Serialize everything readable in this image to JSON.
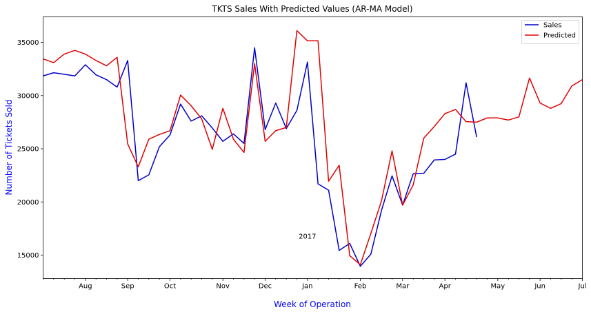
{
  "chart_data": {
    "type": "line",
    "title": "TKTS Sales With Predicted Values (AR-MA Model)",
    "xlabel": "Week of Operation",
    "ylabel": "Number of Tickets Sold",
    "x_axis": {
      "type": "weekly",
      "num_weeks": 51,
      "tick_labels": [
        {
          "week": 4,
          "label": "Aug"
        },
        {
          "week": 8,
          "label": "Sep"
        },
        {
          "week": 12,
          "label": "Oct"
        },
        {
          "week": 17,
          "label": "Nov"
        },
        {
          "week": 21,
          "label": "Dec"
        },
        {
          "week": 25,
          "label": "Jan",
          "sublabel": "2017"
        },
        {
          "week": 30,
          "label": "Feb"
        },
        {
          "week": 34,
          "label": "Mar"
        },
        {
          "week": 38,
          "label": "Apr"
        },
        {
          "week": 43,
          "label": "May"
        },
        {
          "week": 47,
          "label": "Jun"
        },
        {
          "week": 51,
          "label": "Jul"
        }
      ]
    },
    "ylim": [
      12800,
      37400
    ],
    "yticks": [
      15000,
      20000,
      25000,
      30000,
      35000
    ],
    "grid": false,
    "legend": "top-right",
    "series": [
      {
        "name": "Sales",
        "color": "#0000cc",
        "values": [
          31850,
          32150,
          32000,
          31850,
          32900,
          31950,
          31500,
          30800,
          33300,
          22000,
          22550,
          25200,
          26300,
          29200,
          27600,
          28100,
          26950,
          25700,
          26400,
          25500,
          34500,
          26800,
          29300,
          26900,
          28600,
          33150,
          21700,
          21100,
          15450,
          16100,
          13950,
          15100,
          19200,
          22450,
          19700,
          22650,
          22700,
          23950,
          24000,
          24500,
          31200,
          26100
        ]
      },
      {
        "name": "Predicted",
        "color": "#e00000",
        "values": [
          33450,
          33100,
          33900,
          34250,
          33900,
          33300,
          32800,
          33600,
          25450,
          23300,
          25900,
          26350,
          26700,
          30050,
          29050,
          27800,
          24950,
          28800,
          25900,
          24650,
          33000,
          25700,
          26700,
          27000,
          36100,
          35150,
          35150,
          21950,
          23450,
          14950,
          14100,
          17050,
          20100,
          24800,
          19700,
          21600,
          26000,
          27100,
          28300,
          28700,
          27550,
          27500,
          27900,
          27900,
          27700,
          28000,
          31650,
          29300,
          28800,
          29250,
          30900,
          31500
        ]
      }
    ]
  }
}
